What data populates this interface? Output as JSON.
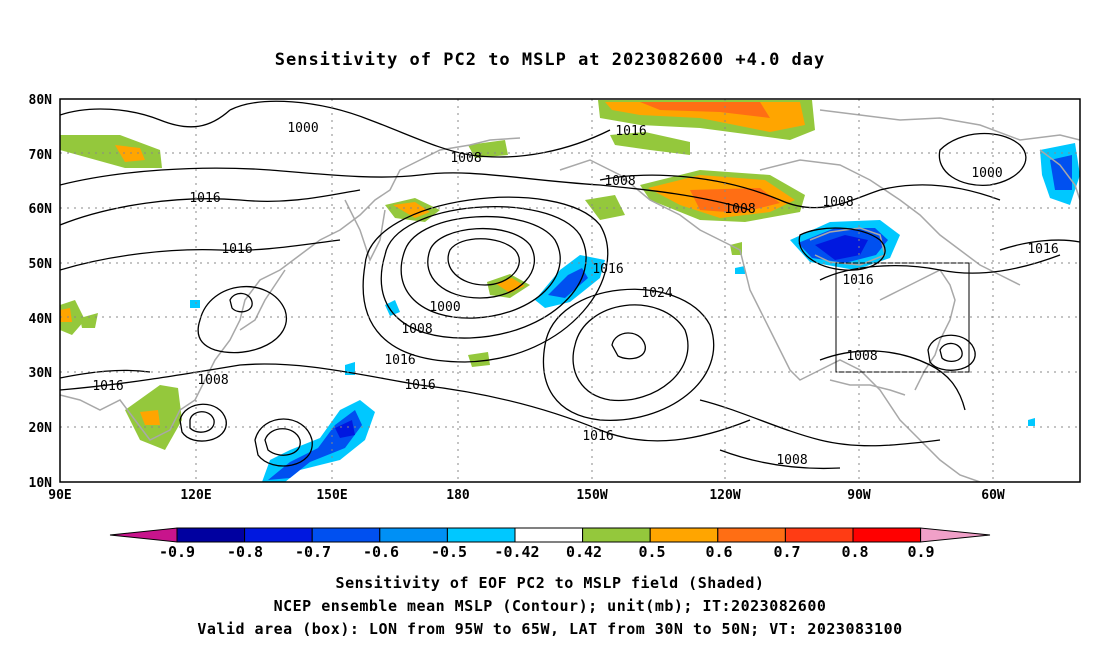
{
  "title": "Sensitivity of PC2 to MSLP at 2023082600 +4.0 day",
  "lat_labels": [
    "80N",
    "70N",
    "60N",
    "50N",
    "40N",
    "30N",
    "20N",
    "10N"
  ],
  "lon_labels": [
    "90E",
    "120E",
    "150E",
    "180",
    "150W",
    "120W",
    "90W",
    "60W"
  ],
  "contour_labels": [
    "1000",
    "1008",
    "1016",
    "1016",
    "1008",
    "1016",
    "1000",
    "1008",
    "1016",
    "1016",
    "1024",
    "1008",
    "1008",
    "1016",
    "1016",
    "1016",
    "1008",
    "1016",
    "1008",
    "1016",
    "1008",
    "1016"
  ],
  "colorbar": {
    "ticks": [
      "-0.9",
      "-0.8",
      "-0.7",
      "-0.6",
      "-0.5",
      "-0.42",
      "0.42",
      "0.5",
      "0.6",
      "0.7",
      "0.8",
      "0.9"
    ],
    "colors": [
      "#0000a0",
      "#0018e0",
      "#0050f0",
      "#0090f5",
      "#00c8ff",
      "#ffffff",
      "#94c83c",
      "#ffa500",
      "#ff6e14",
      "#ff3c14",
      "#ff0000"
    ],
    "low_end_color": "#c8148c",
    "high_end_color": "#f0a0c8"
  },
  "captions": [
    "Sensitivity of EOF PC2 to MSLP field (Shaded)",
    "NCEP ensemble mean MSLP (Contour); unit(mb); IT:2023082600",
    "Valid area (box): LON from 95W to 65W, LAT from 30N to 50N; VT: 2023083100"
  ],
  "valid_box": {
    "lon": [
      -95,
      -65
    ],
    "lat": [
      30,
      50
    ]
  },
  "shading_colors": {
    "blue_dark": "#0018e0",
    "blue_mid": "#0050f0",
    "cyan": "#00c8ff",
    "green": "#94c83c",
    "orange": "#ffa500",
    "orange_red": "#ff6e14"
  }
}
